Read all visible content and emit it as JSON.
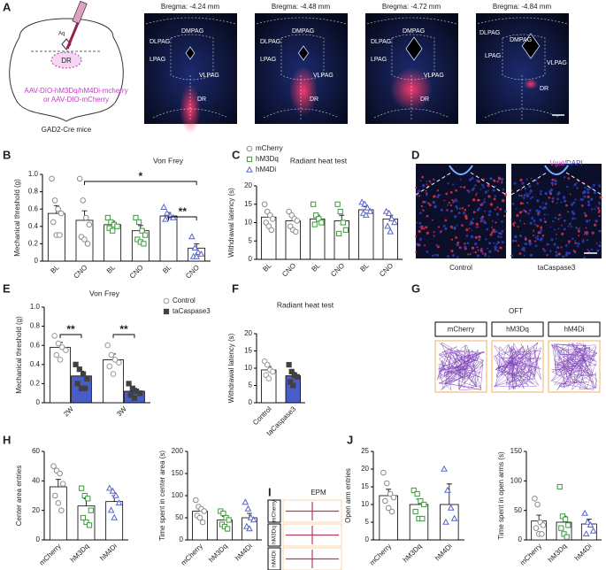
{
  "panel_labels": [
    "A",
    "B",
    "C",
    "D",
    "E",
    "F",
    "G",
    "H",
    "I",
    "J"
  ],
  "panel_a": {
    "bregma": [
      "Bregma: -4.24 mm",
      "Bregma: -4.48 mm",
      "Bregma: -4.72 mm",
      "Bregma: -4.84 mm"
    ],
    "regions": [
      "DMPAG",
      "DLPAG",
      "LPAG",
      "VLPAG",
      "DR"
    ],
    "schematic": {
      "aqueduct": "Aq",
      "region": "DR",
      "virus": [
        "AAV-DIO-hM3Dq/hM4Di-mcherry",
        "or AAV-DIO-mCherry"
      ],
      "mouse": "GAD2-Cre mice"
    }
  },
  "panel_d": {
    "stain": [
      "Vgat",
      "/DAPI"
    ],
    "conditions": [
      "Control",
      "taCaspase3"
    ]
  },
  "panel_g": {
    "title": "OFT",
    "groups": [
      "mCherry",
      "hM3Dq",
      "hM4Di"
    ]
  },
  "panel_i": {
    "title": "EPM",
    "groups": [
      "mCherry",
      "hM3Dq",
      "hM4Di"
    ]
  },
  "chart_data": [
    {
      "type": "bar",
      "title": "Von Frey",
      "y_label": "Mechanical threshold (g)",
      "categories": [
        "BL",
        "CNO",
        "BL",
        "CNO",
        "BL",
        "CNO"
      ],
      "ylim": [
        0,
        1
      ],
      "yticks": [
        0,
        0.2,
        0.4,
        0.6,
        0.8,
        {
          "value": 1,
          "label": "1.0"
        }
      ],
      "legend": "top-right",
      "annotations": [
        "*",
        "**"
      ],
      "series": [
        {
          "name": "mCherry",
          "color": "#8c8c8c",
          "marker": "circle",
          "bar_color": "#ffffff",
          "values": [
            0.55,
            0.47,
            null,
            null,
            null,
            null
          ],
          "errors": [
            0.09,
            0.11,
            null,
            null,
            null,
            null
          ],
          "points": [
            [
              0.95,
              0.7,
              0.6,
              0.55,
              0.45,
              0.3,
              0.3
            ],
            [
              0.95,
              0.7,
              0.5,
              0.42,
              0.28,
              0.25,
              0.2
            ],
            null,
            null,
            null,
            null
          ]
        },
        {
          "name": "hM3Dq",
          "color": "#3a9a3a",
          "marker": "square",
          "bar_color": "#ffffff",
          "values": [
            null,
            null,
            0.42,
            0.35,
            null,
            null
          ],
          "errors": [
            null,
            null,
            0.04,
            0.06,
            null,
            null
          ],
          "points": [
            null,
            null,
            [
              0.5,
              0.45,
              0.42,
              0.4,
              0.38,
              0.35
            ],
            [
              0.5,
              0.45,
              0.35,
              0.3,
              0.25,
              0.22,
              0.2
            ],
            null,
            null
          ]
        },
        {
          "name": "hM4Di",
          "color": "#5566cc",
          "marker": "triangle",
          "bar_color": "#ffffff",
          "values": [
            null,
            null,
            null,
            null,
            0.52,
            0.15
          ],
          "errors": [
            null,
            null,
            null,
            null,
            0.04,
            0.05
          ],
          "points": [
            null,
            null,
            null,
            null,
            [
              0.62,
              0.55,
              0.52,
              0.5,
              0.48
            ],
            [
              0.28,
              0.15,
              0.1,
              0.08,
              0.05,
              0.05
            ]
          ]
        }
      ]
    },
    {
      "type": "bar",
      "title": "Radiant heat test",
      "y_label": "Withdrawal latency (s)",
      "categories": [
        "BL",
        "CNO",
        "BL",
        "CNO",
        "BL",
        "CNO"
      ],
      "ylim": [
        0,
        20
      ],
      "yticks": [
        0,
        5,
        10,
        15,
        20
      ],
      "series": [
        {
          "color": "#8c8c8c",
          "marker": "circle",
          "bar_color": "#ffffff",
          "values": [
            11.5,
            10.5,
            null,
            null,
            null,
            null
          ],
          "errors": [
            1,
            1,
            null,
            null,
            null,
            null
          ],
          "points": [
            [
              15,
              13,
              12,
              11,
              10,
              9,
              8
            ],
            [
              13,
              12,
              11,
              10.5,
              9,
              8,
              7.5
            ],
            null,
            null,
            null,
            null
          ]
        },
        {
          "color": "#3a9a3a",
          "marker": "square",
          "bar_color": "#ffffff",
          "values": [
            null,
            null,
            11,
            10.5,
            null,
            null
          ],
          "errors": [
            null,
            null,
            1,
            1.5,
            null,
            null
          ],
          "points": [
            null,
            null,
            [
              15,
              12,
              11,
              10,
              9.5
            ],
            [
              15,
              13,
              10,
              8,
              7
            ],
            null,
            null
          ]
        },
        {
          "color": "#5566cc",
          "marker": "triangle",
          "bar_color": "#ffffff",
          "values": [
            null,
            null,
            null,
            null,
            13.5,
            11
          ],
          "errors": [
            null,
            null,
            null,
            null,
            0.8,
            1
          ],
          "points": [
            null,
            null,
            null,
            null,
            [
              15.5,
              15,
              14,
              13,
              12.5,
              12
            ],
            [
              13,
              12.5,
              11,
              10,
              9,
              7.5
            ]
          ]
        }
      ]
    },
    {
      "type": "bar",
      "title": "Von Frey",
      "y_label": "Mechanical threshold (g)",
      "categories": [
        "2W",
        "3W"
      ],
      "ylim": [
        0,
        1
      ],
      "yticks": [
        0,
        0.2,
        0.4,
        0.6,
        0.8,
        {
          "value": 1,
          "label": "1.0"
        }
      ],
      "legend": "top-right",
      "annotations": [
        "**",
        "**"
      ],
      "series": [
        {
          "name": "Control",
          "color": "#999999",
          "marker": "circle",
          "bar_color": "#ffffff",
          "values": [
            0.58,
            0.45
          ],
          "errors": [
            0.05,
            0.06
          ],
          "points": [
            [
              0.7,
              0.62,
              0.58,
              0.55,
              0.5,
              0.45
            ],
            [
              0.6,
              0.5,
              0.45,
              0.42,
              0.38,
              0.3
            ]
          ]
        },
        {
          "name": "taCaspase3",
          "color": "#404040",
          "marker": "square",
          "bar_color": "#4a5cc7",
          "values": [
            0.28,
            0.12
          ],
          "errors": [
            0.05,
            0.03
          ],
          "points": [
            [
              0.4,
              0.35,
              0.3,
              0.25,
              0.2,
              0.15,
              0.15
            ],
            [
              0.2,
              0.15,
              0.12,
              0.1,
              0.08,
              0.05
            ]
          ]
        }
      ]
    },
    {
      "type": "bar",
      "title": "Radiant heat test",
      "y_label": "Withdrawal latency (s)",
      "categories": [
        "Control",
        "taCaspase3"
      ],
      "ylim": [
        0,
        20
      ],
      "yticks": [
        0,
        5,
        10,
        15,
        20
      ],
      "series": [
        {
          "color": "#999999",
          "marker": "circle",
          "bar_color": "#ffffff",
          "values": [
            9.5,
            null
          ],
          "errors": [
            1,
            null
          ],
          "points": [
            [
              12,
              11,
              9.5,
              9,
              8,
              7
            ],
            null
          ]
        },
        {
          "color": "#404040",
          "marker": "square",
          "bar_color": "#4a5cc7",
          "values": [
            null,
            7.8
          ],
          "errors": [
            null,
            1
          ],
          "points": [
            null,
            [
              11,
              9,
              8,
              7.5,
              6,
              5
            ]
          ]
        }
      ]
    },
    {
      "type": "bar",
      "y_label": "Center area entries",
      "categories": [
        "mCherry",
        "hM3Dq",
        "hM4Di"
      ],
      "ylim": [
        0,
        60
      ],
      "yticks": [
        0,
        20,
        40,
        60
      ],
      "series": [
        {
          "color": "#8c8c8c",
          "marker": "circle",
          "bar_color": "#ffffff",
          "values": [
            36,
            null,
            null
          ],
          "errors": [
            5,
            null,
            null
          ],
          "points": [
            [
              50,
              47,
              45,
              38,
              30,
              25,
              20
            ],
            null,
            null
          ]
        },
        {
          "color": "#3a9a3a",
          "marker": "square",
          "bar_color": "#ffffff",
          "values": [
            null,
            23,
            null
          ],
          "errors": [
            null,
            5,
            null
          ],
          "points": [
            null,
            [
              35,
              30,
              28,
              20,
              15,
              12,
              10
            ],
            null
          ]
        },
        {
          "color": "#5566cc",
          "marker": "triangle",
          "bar_color": "#ffffff",
          "values": [
            null,
            null,
            26
          ],
          "errors": [
            null,
            null,
            4
          ],
          "points": [
            null,
            null,
            [
              35,
              33,
              30,
              25,
              20,
              15
            ]
          ]
        }
      ]
    },
    {
      "type": "bar",
      "y_label": "Time spent in center area (s)",
      "categories": [
        "mCherry",
        "hM3Dq",
        "hM4Di"
      ],
      "ylim": [
        0,
        200
      ],
      "yticks": [
        0,
        50,
        100,
        150,
        200
      ],
      "series": [
        {
          "color": "#8c8c8c",
          "marker": "circle",
          "bar_color": "#ffffff",
          "values": [
            65,
            null,
            null
          ],
          "errors": [
            8,
            null,
            null
          ],
          "points": [
            [
              90,
              75,
              70,
              65,
              55,
              50,
              40
            ],
            null,
            null
          ]
        },
        {
          "color": "#3a9a3a",
          "marker": "square",
          "bar_color": "#ffffff",
          "values": [
            null,
            45,
            null
          ],
          "errors": [
            null,
            8,
            null
          ],
          "points": [
            null,
            [
              65,
              60,
              50,
              45,
              35,
              30,
              25
            ],
            null
          ]
        },
        {
          "color": "#5566cc",
          "marker": "triangle",
          "bar_color": "#ffffff",
          "values": [
            null,
            null,
            50
          ],
          "errors": [
            null,
            null,
            10
          ],
          "points": [
            null,
            null,
            [
              85,
              70,
              50,
              45,
              30,
              25
            ]
          ]
        }
      ]
    },
    {
      "type": "bar",
      "y_label": "Open arm entries",
      "categories": [
        "mCherry",
        "hM3Dq",
        "hM4Di"
      ],
      "ylim": [
        0,
        25
      ],
      "yticks": [
        0,
        5,
        10,
        15,
        20,
        25
      ],
      "series": [
        {
          "color": "#8c8c8c",
          "marker": "circle",
          "bar_color": "#ffffff",
          "values": [
            12.5,
            null,
            null
          ],
          "errors": [
            1.8,
            null,
            null
          ],
          "points": [
            [
              19,
              16,
              13,
              12,
              11,
              9,
              8
            ],
            null,
            null
          ]
        },
        {
          "color": "#3a9a3a",
          "marker": "square",
          "bar_color": "#ffffff",
          "values": [
            null,
            10,
            null
          ],
          "errors": [
            null,
            1.5,
            null
          ],
          "points": [
            null,
            [
              14,
              13,
              11,
              10,
              8,
              6,
              6
            ],
            null
          ]
        },
        {
          "color": "#5566cc",
          "marker": "triangle",
          "bar_color": "#ffffff",
          "values": [
            null,
            null,
            10
          ],
          "errors": [
            null,
            null,
            5.8
          ],
          "points": [
            null,
            null,
            [
              20,
              14,
              9,
              6,
              5
            ]
          ]
        }
      ]
    },
    {
      "type": "bar",
      "y_label": "Time spent in open arms (s)",
      "categories": [
        "mCherry",
        "hM3Dq",
        "hM4Di"
      ],
      "ylim": [
        0,
        150
      ],
      "yticks": [
        0,
        50,
        100,
        150
      ],
      "series": [
        {
          "color": "#8c8c8c",
          "marker": "circle",
          "bar_color": "#ffffff",
          "values": [
            32,
            null,
            null
          ],
          "errors": [
            10,
            null,
            null
          ],
          "points": [
            [
              70,
              60,
              30,
              25,
              20,
              10,
              10
            ],
            null,
            null
          ]
        },
        {
          "color": "#3a9a3a",
          "marker": "square",
          "bar_color": "#ffffff",
          "values": [
            null,
            30,
            null
          ],
          "errors": [
            null,
            10,
            null
          ],
          "points": [
            null,
            [
              90,
              40,
              35,
              25,
              20,
              10,
              5
            ],
            null
          ]
        },
        {
          "color": "#5566cc",
          "marker": "triangle",
          "bar_color": "#ffffff",
          "values": [
            null,
            null,
            27
          ],
          "errors": [
            null,
            null,
            8
          ],
          "points": [
            null,
            null,
            [
              45,
              30,
              25,
              15,
              10
            ]
          ]
        }
      ]
    }
  ]
}
